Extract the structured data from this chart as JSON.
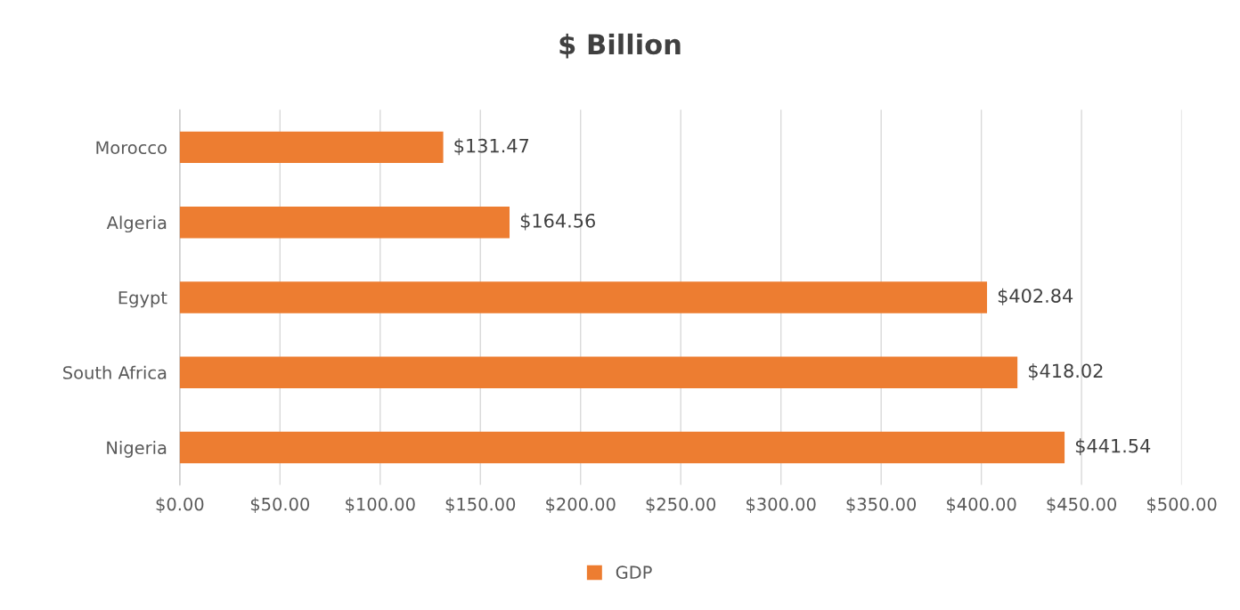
{
  "chart_data": {
    "type": "bar",
    "orientation": "horizontal",
    "title": "$ Billion",
    "categories": [
      "Morocco",
      "Algeria",
      "Egypt",
      "South Africa",
      "Nigeria"
    ],
    "series": [
      {
        "name": "GDP",
        "color": "#ed7d31",
        "values": [
          131.47,
          164.56,
          402.84,
          418.02,
          441.54
        ],
        "value_labels": [
          "$131.47",
          "$164.56",
          "$402.84",
          "$418.02",
          "$441.54"
        ]
      }
    ],
    "xlim": [
      0,
      500
    ],
    "xticks": [
      {
        "value": 0,
        "label": "$0.00"
      },
      {
        "value": 50,
        "label": "$50.00"
      },
      {
        "value": 100,
        "label": "$100.00"
      },
      {
        "value": 150,
        "label": "$150.00"
      },
      {
        "value": 200,
        "label": "$200.00"
      },
      {
        "value": 250,
        "label": "$250.00"
      },
      {
        "value": 300,
        "label": "$300.00"
      },
      {
        "value": 350,
        "label": "$350.00"
      },
      {
        "value": 400,
        "label": "$400.00"
      },
      {
        "value": 450,
        "label": "$450.00"
      },
      {
        "value": 500,
        "label": "$500.00"
      }
    ],
    "grid": "x",
    "legend": "bottom"
  }
}
